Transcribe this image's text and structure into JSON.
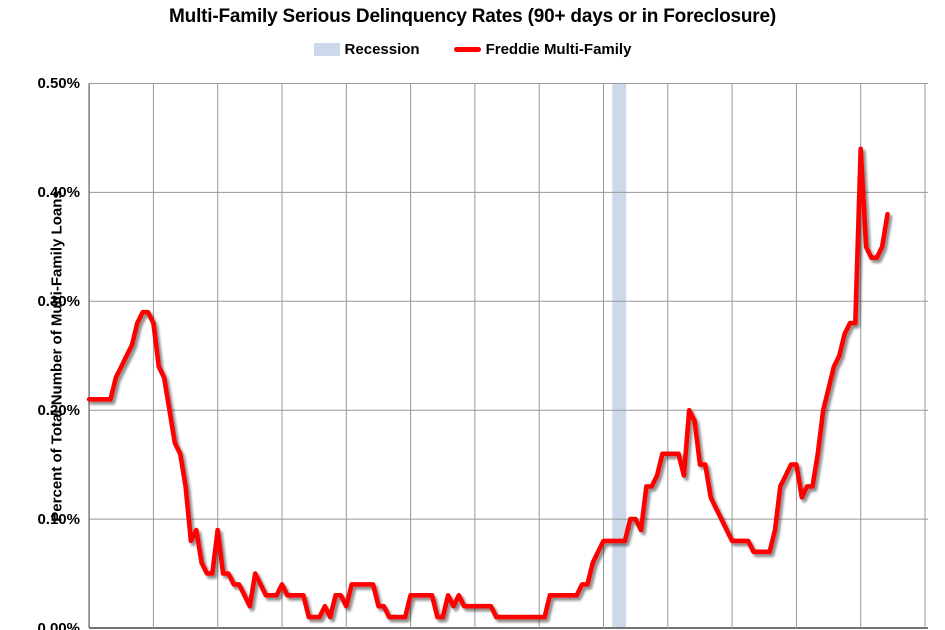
{
  "page": {
    "background": "#FFFFFF"
  },
  "chart_data": {
    "type": "line",
    "title": "Multi-Family Serious Delinquency Rates (90+ days or in Foreclosure)",
    "ylabel": "Percent of Total Number of Multi-Family Loans",
    "xlabel": "",
    "y_ticks": [
      "0.00%",
      "0.10%",
      "0.20%",
      "0.30%",
      "0.40%",
      "0.50%"
    ],
    "ylim": [
      0,
      0.5
    ],
    "grid": "on",
    "legend_position": "top-center",
    "legend": [
      {
        "label": "Recession",
        "swatch": "area",
        "color": "#CBD9EA"
      },
      {
        "label": "Freddie Multi-Family",
        "swatch": "line",
        "color": "#FF0000"
      }
    ],
    "x_axis": {
      "start": "2012-01",
      "end": "2024-06",
      "frequency": "monthly",
      "gridline_interval": "1 year",
      "tick_labels_visible": false
    },
    "recession_bands": [
      {
        "start": "2020-02",
        "end": "2020-04",
        "color": "#CBD9EA"
      }
    ],
    "series": [
      {
        "name": "Freddie Multi-Family",
        "color": "#FF0000",
        "unit": "percent",
        "start": "2012-01",
        "values_by_year": {
          "2012": [
            0.21,
            0.21,
            0.21,
            0.21,
            0.21,
            0.23,
            0.24,
            0.25,
            0.26,
            0.28,
            0.29,
            0.29
          ],
          "2013": [
            0.28,
            0.24,
            0.23,
            0.2,
            0.17,
            0.16,
            0.13,
            0.08,
            0.09,
            0.06,
            0.05,
            0.05
          ],
          "2014": [
            0.09,
            0.05,
            0.05,
            0.04,
            0.04,
            0.03,
            0.02,
            0.05,
            0.04,
            0.03,
            0.03,
            0.03
          ],
          "2015": [
            0.04,
            0.03,
            0.03,
            0.03,
            0.03,
            0.01,
            0.01,
            0.01,
            0.02,
            0.01,
            0.03,
            0.03
          ],
          "2016": [
            0.02,
            0.04,
            0.04,
            0.04,
            0.04,
            0.04,
            0.02,
            0.02,
            0.01,
            0.01,
            0.01,
            0.01
          ],
          "2017": [
            0.03,
            0.03,
            0.03,
            0.03,
            0.03,
            0.01,
            0.01,
            0.03,
            0.02,
            0.03,
            0.02,
            0.02
          ],
          "2018": [
            0.02,
            0.02,
            0.02,
            0.02,
            0.01,
            0.01,
            0.01,
            0.01,
            0.01,
            0.01,
            0.01,
            0.01
          ],
          "2019": [
            0.01,
            0.01,
            0.03,
            0.03,
            0.03,
            0.03,
            0.03,
            0.03,
            0.04,
            0.04,
            0.06,
            0.07
          ],
          "2020": [
            0.08,
            0.08,
            0.08,
            0.08,
            0.08,
            0.1,
            0.1,
            0.09,
            0.13,
            0.13,
            0.14,
            0.16
          ],
          "2021": [
            0.16,
            0.16,
            0.16,
            0.14,
            0.2,
            0.19,
            0.15,
            0.15,
            0.12,
            0.11,
            0.1,
            0.09
          ],
          "2022": [
            0.08,
            0.08,
            0.08,
            0.08,
            0.07,
            0.07,
            0.07,
            0.07,
            0.09,
            0.13,
            0.14,
            0.15
          ],
          "2023": [
            0.15,
            0.12,
            0.13,
            0.13,
            0.16,
            0.2,
            0.22,
            0.24,
            0.25,
            0.27,
            0.28,
            0.28
          ],
          "2024": [
            0.44,
            0.35,
            0.34,
            0.34,
            0.35,
            0.38
          ]
        }
      }
    ]
  },
  "colors": {
    "gridline": "#989898",
    "axis": "#737373",
    "line_shadow": "rgba(80,80,80,0.45)",
    "text": "#000000"
  }
}
